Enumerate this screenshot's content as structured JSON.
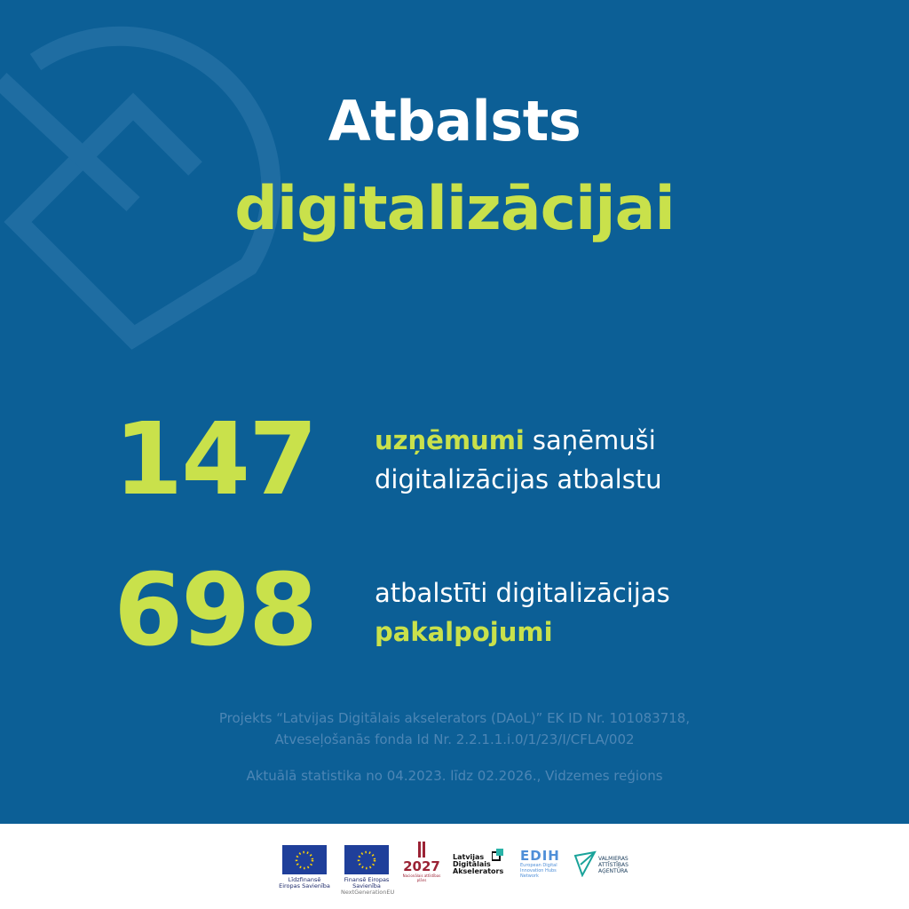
{
  "title": {
    "line1": "Atbalsts",
    "line2": "digitalizācijai"
  },
  "stats": [
    {
      "number": 147,
      "highlight": "uzņēmumi",
      "rest": "saņēmuši",
      "line2": "digitalizācijas atbalstu"
    },
    {
      "number": 698,
      "line1": "atbalstīti digitalizācijas",
      "highlight": "pakalpojumi"
    }
  ],
  "notes": {
    "project_line1": "Projekts “Latvijas Digitālais akselerators (DAoL)” EK ID Nr. 101083718,",
    "project_line2": "Atveseļošanās fonda Id Nr. 2.2.1.1.i.0/1/23/I/CFLA/002",
    "period": "Aktuālā statistika no 04.2023. līdz 02.2026., Vidzemes reģions"
  },
  "logos": {
    "eu_cofund": "Līdzfinansē Eiropas Savienība",
    "eu_fund": "Finansē Eiropas Savienība",
    "eu_fund_sub": "NextGenerationEU",
    "plan_year": "2027",
    "plan_text": "Nacionālais attīstības plāns",
    "dao": "Latvijas Digitālais Akselerators",
    "edih": "EDIH",
    "edih_text": "European Digital Innovation Hubs Network",
    "vaa": "VALMIERAS ATTĪSTĪBAS AĢENTŪRA"
  }
}
